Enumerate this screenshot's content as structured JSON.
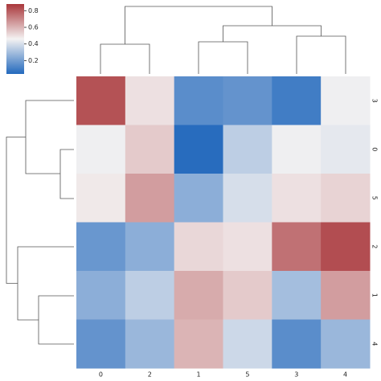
{
  "chart_data": {
    "type": "heatmap",
    "x_labels": [
      "0",
      "2",
      "1",
      "5",
      "3",
      "4"
    ],
    "y_labels": [
      "3",
      "0",
      "5",
      "2",
      "1",
      "4"
    ],
    "values": [
      [
        0.82,
        0.5,
        0.15,
        0.17,
        0.1,
        0.45
      ],
      [
        0.45,
        0.55,
        0.05,
        0.35,
        0.45,
        0.43
      ],
      [
        0.48,
        0.65,
        0.25,
        0.4,
        0.5,
        0.53
      ],
      [
        0.18,
        0.25,
        0.52,
        0.5,
        0.75,
        0.83
      ],
      [
        0.25,
        0.35,
        0.62,
        0.55,
        0.3,
        0.65
      ],
      [
        0.17,
        0.28,
        0.6,
        0.38,
        0.15,
        0.28
      ]
    ],
    "colorbar_lim": [
      0.04,
      0.88
    ],
    "colorbar_ticks": [
      0.2,
      0.4,
      0.6,
      0.8
    ],
    "colormap": [
      "#2369bd",
      "#f4f2f2",
      "#a9373b"
    ]
  }
}
